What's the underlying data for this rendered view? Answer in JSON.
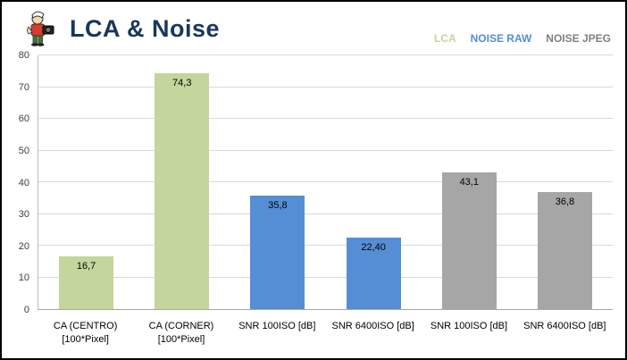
{
  "header": {
    "title": "LCA & Noise",
    "logo_icon": "mascot-logo"
  },
  "legend": [
    {
      "label": "LCA",
      "color": "#c3d69b"
    },
    {
      "label": "NOISE RAW",
      "color": "#558ed5"
    },
    {
      "label": "NOISE JPEG",
      "color": "#808080"
    }
  ],
  "chart_data": {
    "type": "bar",
    "title": "LCA & Noise",
    "categories": [
      "CA (CENTRO)\n[100*Pixel]",
      "CA (CORNER)\n[100*Pixel]",
      "SNR 100ISO [dB]",
      "SNR 6400ISO [dB]",
      "SNR 100ISO [dB]",
      "SNR 6400ISO [dB]"
    ],
    "values": [
      16.7,
      74.3,
      35.8,
      22.4,
      43.1,
      36.8
    ],
    "value_labels": [
      "16,7",
      "74,3",
      "35,8",
      "22,40",
      "43,1",
      "36,8"
    ],
    "bar_colors": [
      "#c3d69b",
      "#c3d69b",
      "#558ed5",
      "#558ed5",
      "#a6a6a6",
      "#a6a6a6"
    ],
    "bar_series": [
      "LCA",
      "LCA",
      "NOISE RAW",
      "NOISE RAW",
      "NOISE JPEG",
      "NOISE JPEG"
    ],
    "xlabel": "",
    "ylabel": "",
    "ylim": [
      0,
      80
    ],
    "ytick_step": 10,
    "grid": "horizontal",
    "legend_position": "top-right"
  }
}
